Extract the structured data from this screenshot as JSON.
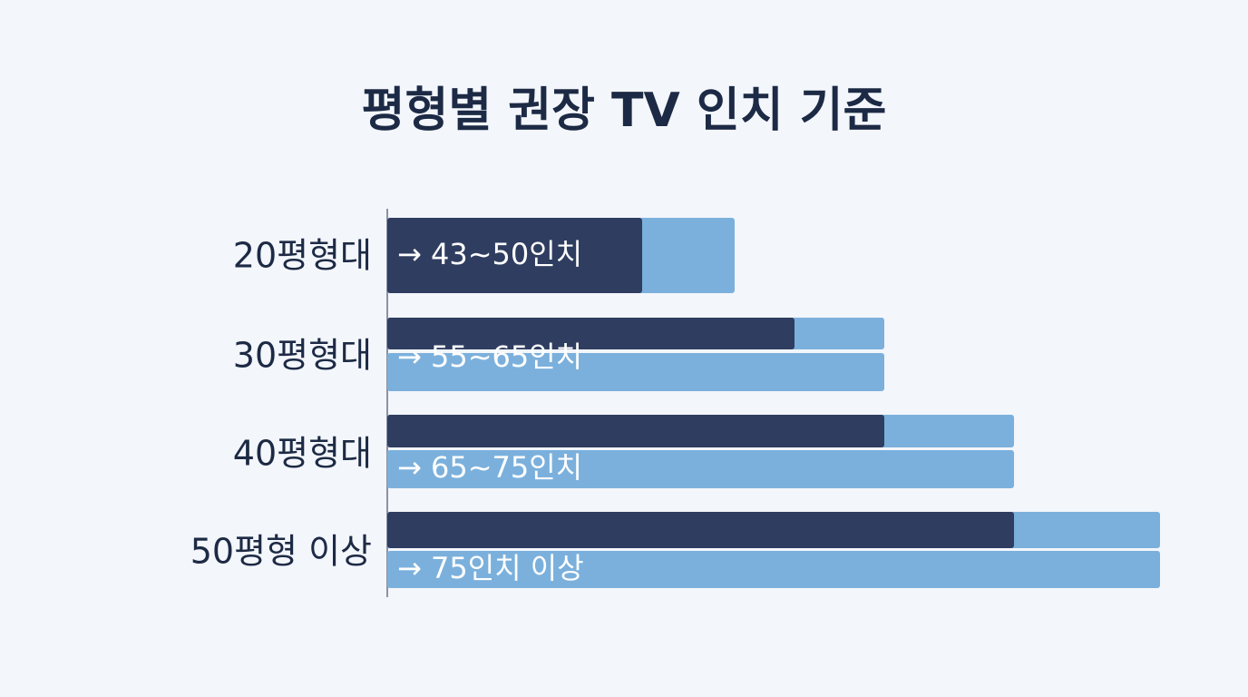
{
  "title": "평형별 권장 TV 인치 기준",
  "rows": [
    {
      "label": "20평형대",
      "range": "→ 43~50인치"
    },
    {
      "label": "30평형대",
      "range": "→ 55~65인치"
    },
    {
      "label": "40평형대",
      "range": "→ 65~75인치"
    },
    {
      "label": "50평형 이상",
      "range": "→ 75인치 이상"
    }
  ]
}
